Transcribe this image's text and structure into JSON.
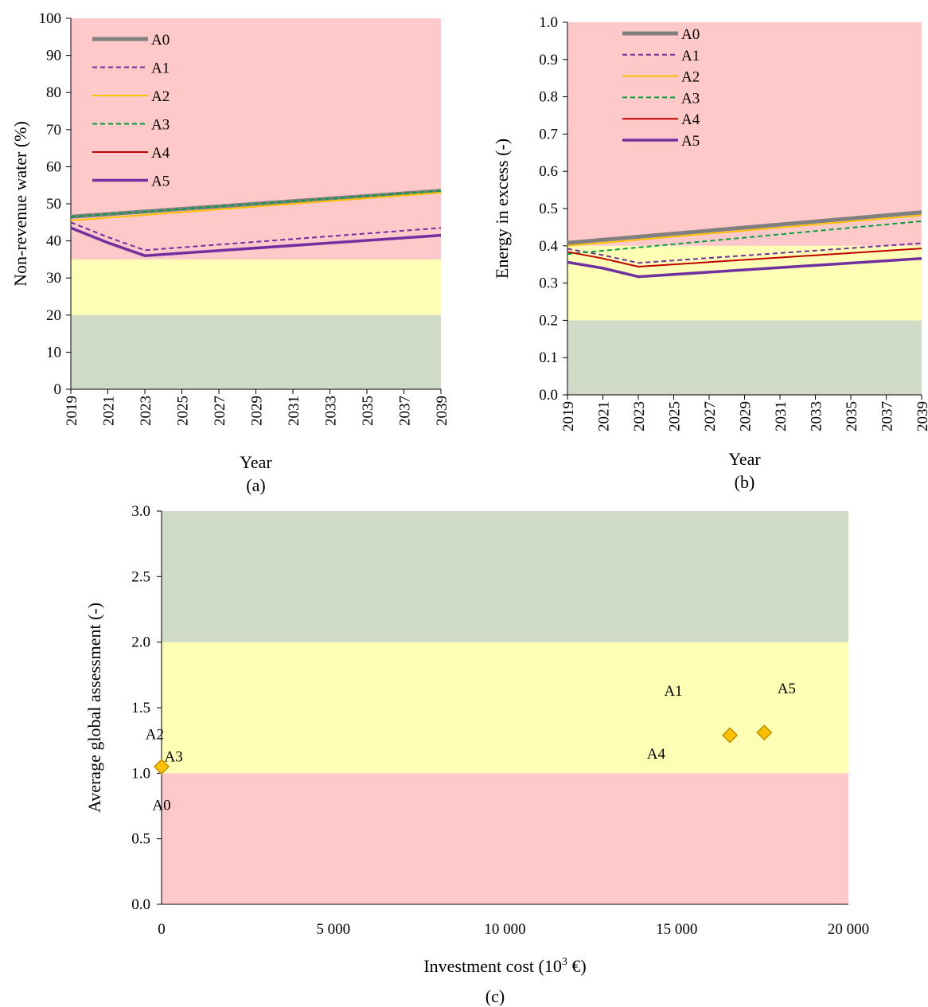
{
  "colors": {
    "zone_red": "#ffc9c9",
    "zone_yellow": "#feffb4",
    "zone_green": "#cfdbc7",
    "A0": "#808080",
    "A1": "#7030a0",
    "A2": "#ffc000",
    "A3": "#00a040",
    "A4": "#c00000",
    "A5": "#7030a0",
    "marker_fill": "#ffc000",
    "marker_stroke": "#c09000"
  },
  "chart_data": [
    {
      "id": "a",
      "type": "line",
      "panel_label": "(a)",
      "xlabel": "Year",
      "ylabel": "Non-revenue water (%)",
      "xlim": [
        2019,
        2039
      ],
      "ylim": [
        0,
        100
      ],
      "x_ticks": [
        "2019",
        "2021",
        "2023",
        "2025",
        "2027",
        "2029",
        "2031",
        "2033",
        "2035",
        "2037",
        "2039"
      ],
      "y_ticks": [
        "0",
        "10",
        "20",
        "30",
        "40",
        "50",
        "60",
        "70",
        "80",
        "90",
        "100"
      ],
      "zones": [
        {
          "from": 0,
          "to": 20,
          "color": "green"
        },
        {
          "from": 20,
          "to": 35,
          "color": "yellow"
        },
        {
          "from": 35,
          "to": 100,
          "color": "red"
        }
      ],
      "legend_position": "top-left",
      "series": [
        {
          "name": "A0",
          "style": "thick-solid",
          "x": [
            2019,
            2039
          ],
          "y": [
            46.5,
            53.5
          ]
        },
        {
          "name": "A1",
          "style": "dashed",
          "x": [
            2019,
            2021,
            2023,
            2039
          ],
          "y": [
            45,
            41,
            37.5,
            43.5
          ]
        },
        {
          "name": "A2",
          "style": "solid",
          "x": [
            2019,
            2039
          ],
          "y": [
            45.5,
            53
          ]
        },
        {
          "name": "A3",
          "style": "dashed",
          "x": [
            2019,
            2039
          ],
          "y": [
            46.5,
            53.5
          ]
        },
        {
          "name": "A4",
          "style": "solid",
          "x": [
            2019,
            2021,
            2023,
            2039
          ],
          "y": [
            43.5,
            39.5,
            36,
            41.5
          ]
        },
        {
          "name": "A5",
          "style": "medium-solid",
          "x": [
            2019,
            2021,
            2023,
            2039
          ],
          "y": [
            43.5,
            39.5,
            36,
            41.5
          ]
        }
      ]
    },
    {
      "id": "b",
      "type": "line",
      "panel_label": "(b)",
      "xlabel": "Year",
      "ylabel": "Energy in excess (-)",
      "xlim": [
        2019,
        2039
      ],
      "ylim": [
        0,
        1
      ],
      "x_ticks": [
        "2019",
        "2021",
        "2023",
        "2025",
        "2027",
        "2029",
        "2031",
        "2033",
        "2035",
        "2037",
        "2039"
      ],
      "y_ticks": [
        "0.0",
        "0.1",
        "0.2",
        "0.3",
        "0.4",
        "0.5",
        "0.6",
        "0.7",
        "0.8",
        "0.9",
        "1.0"
      ],
      "zones": [
        {
          "from": 0,
          "to": 0.2,
          "color": "green"
        },
        {
          "from": 0.2,
          "to": 0.4,
          "color": "yellow"
        },
        {
          "from": 0.4,
          "to": 1.0,
          "color": "red"
        }
      ],
      "legend_position": "top-left",
      "series": [
        {
          "name": "A0",
          "style": "thick-solid",
          "x": [
            2019,
            2039
          ],
          "y": [
            0.408,
            0.49
          ]
        },
        {
          "name": "A1",
          "style": "dashed",
          "x": [
            2019,
            2021,
            2023,
            2039
          ],
          "y": [
            0.392,
            0.375,
            0.354,
            0.407
          ]
        },
        {
          "name": "A2",
          "style": "solid",
          "x": [
            2019,
            2039
          ],
          "y": [
            0.4,
            0.482
          ]
        },
        {
          "name": "A3",
          "style": "dashed",
          "x": [
            2019,
            2039
          ],
          "y": [
            0.378,
            0.466
          ]
        },
        {
          "name": "A4",
          "style": "solid",
          "x": [
            2019,
            2021,
            2023,
            2039
          ],
          "y": [
            0.384,
            0.366,
            0.344,
            0.393
          ]
        },
        {
          "name": "A5",
          "style": "medium-solid",
          "x": [
            2019,
            2021,
            2023,
            2039
          ],
          "y": [
            0.356,
            0.34,
            0.317,
            0.366
          ]
        }
      ]
    },
    {
      "id": "c",
      "type": "scatter",
      "panel_label": "(c)",
      "xlabel": "Investment cost (10",
      "xlabel_sup": "3",
      "xlabel_tail": " €)",
      "ylabel": "Average global assessment (-)",
      "xlim": [
        0,
        20000
      ],
      "ylim": [
        0,
        3
      ],
      "x_ticks": [
        {
          "value": 0,
          "label": "0"
        },
        {
          "value": 5000,
          "label": "5 000"
        },
        {
          "value": 10000,
          "label": "10 000"
        },
        {
          "value": 15000,
          "label": "15 000"
        },
        {
          "value": 20000,
          "label": "20 000"
        }
      ],
      "y_ticks": [
        "0.0",
        "0.5",
        "1.0",
        "1.5",
        "2.0",
        "2.5",
        "3.0"
      ],
      "zones": [
        {
          "from": 0,
          "to": 1.0,
          "color": "red"
        },
        {
          "from": 1.0,
          "to": 2.0,
          "color": "yellow"
        },
        {
          "from": 2.0,
          "to": 3.0,
          "color": "green"
        }
      ],
      "points": [
        {
          "x": 0,
          "y": 1.05
        },
        {
          "x": 16550,
          "y": 1.29
        },
        {
          "x": 17550,
          "y": 1.31
        }
      ],
      "point_labels": [
        {
          "text": "A0",
          "x": 0,
          "y": 0.72
        },
        {
          "text": "A2",
          "x": -200,
          "y": 1.26
        },
        {
          "text": "A3",
          "x": 350,
          "y": 1.09
        },
        {
          "text": "A1",
          "x": 14900,
          "y": 1.59
        },
        {
          "text": "A4",
          "x": 14400,
          "y": 1.11
        },
        {
          "text": "A5",
          "x": 18200,
          "y": 1.61
        }
      ]
    }
  ]
}
